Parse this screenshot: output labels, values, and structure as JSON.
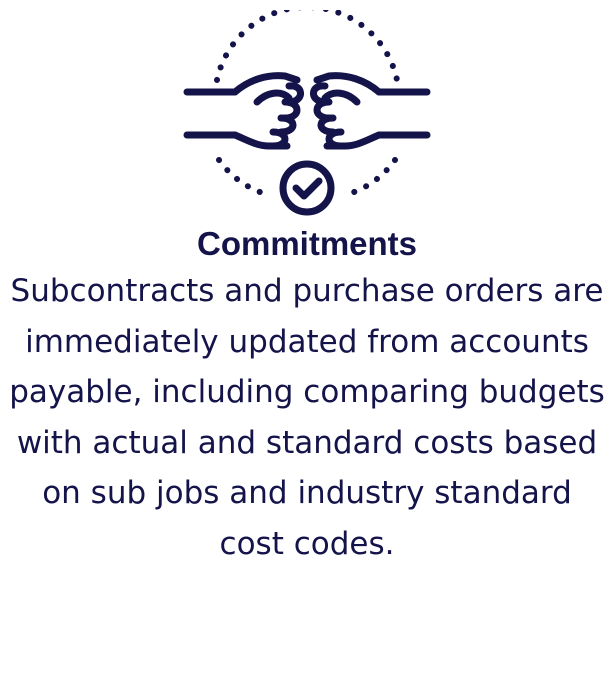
{
  "colors": {
    "primary": "#14134a",
    "background": "#ffffff"
  },
  "icon": {
    "name": "handshake-fist-bump-check-icon"
  },
  "card": {
    "title": "Commitments",
    "description": "Subcontracts and purchase orders are immediately updated from accounts payable, including comparing budgets with actual and standard costs based on sub jobs and industry standard cost codes."
  }
}
